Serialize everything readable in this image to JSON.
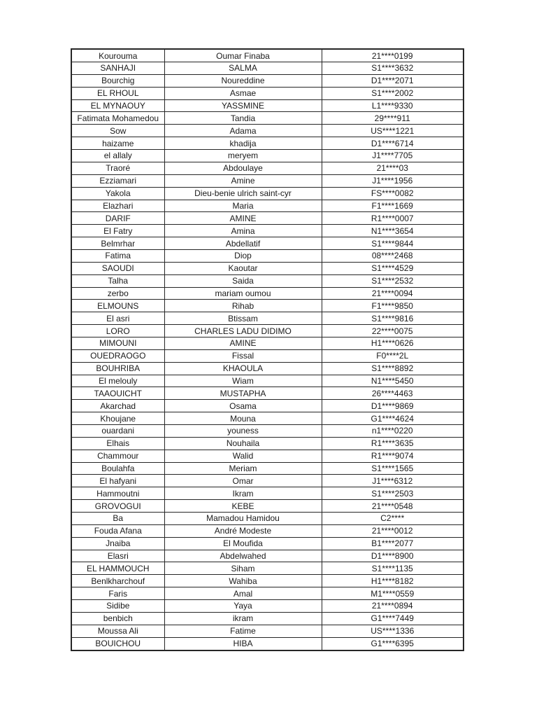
{
  "document": {
    "background_color": "#ffffff",
    "table": {
      "border_color": "#262626",
      "text_color": "#1a1a1a",
      "rows": [
        [
          "Kourouma",
          "Oumar Finaba",
          "21****0199"
        ],
        [
          "SANHAJI",
          "SALMA",
          "S1****3632"
        ],
        [
          "Bourchig",
          "Noureddine",
          "D1****2071"
        ],
        [
          "EL RHOUL",
          "Asmae",
          "S1****2002"
        ],
        [
          "EL MYNAOUY",
          "YASSMINE",
          "L1****9330"
        ],
        [
          "Fatimata Mohamedou",
          "Tandia",
          "29****911"
        ],
        [
          "Sow",
          "Adama",
          "US****1221"
        ],
        [
          "haizame",
          "khadija",
          "D1****6714"
        ],
        [
          "el allaly",
          "meryem",
          "J1****7705"
        ],
        [
          "Traoré",
          "Abdoulaye",
          "21****03"
        ],
        [
          "Ezziamari",
          "Amine",
          "J1****1956"
        ],
        [
          "Yakola",
          "Dieu-benie ulrich saint-cyr",
          "FS****0082"
        ],
        [
          "Elazhari",
          "Maria",
          "F1****1669"
        ],
        [
          "DARIF",
          "AMINE",
          "R1****0007"
        ],
        [
          "El Fatry",
          "Amina",
          "N1****3654"
        ],
        [
          "Belmrhar",
          "Abdellatif",
          "S1****9844"
        ],
        [
          "Fatima",
          "Diop",
          "08****2468"
        ],
        [
          "SAOUDI",
          "Kaoutar",
          "S1****4529"
        ],
        [
          "Talha",
          "Saida",
          "S1****2532"
        ],
        [
          "zerbo",
          "mariam oumou",
          "21****0094"
        ],
        [
          "ELMOUNS",
          "Rihab",
          "F1****9850"
        ],
        [
          "El asri",
          "Btissam",
          "S1****9816"
        ],
        [
          "LORO",
          "CHARLES LADU DIDIMO",
          "22****0075"
        ],
        [
          "MIMOUNI",
          "AMINE",
          "H1****0626"
        ],
        [
          "OUEDRAOGO",
          "Fissal",
          "F0****2L"
        ],
        [
          "BOUHRIBA",
          "KHAOULA",
          "S1****8892"
        ],
        [
          "El melouly",
          "Wiam",
          "N1****5450"
        ],
        [
          "TAAOUICHT",
          "MUSTAPHA",
          "26****4463"
        ],
        [
          "Akarchad",
          "Osama",
          "D1****9869"
        ],
        [
          "Khoujane",
          "Mouna",
          "G1****4624"
        ],
        [
          "ouardani",
          "youness",
          "n1****0220"
        ],
        [
          "Elhais",
          "Nouhaila",
          "R1****3635"
        ],
        [
          "Chammour",
          "Walid",
          "R1****9074"
        ],
        [
          "Boulahfa",
          "Meriam",
          "S1****1565"
        ],
        [
          "El hafyani",
          "Omar",
          "J1****6312"
        ],
        [
          "Hammoutni",
          "Ikram",
          "S1****2503"
        ],
        [
          "GROVOGUI",
          "KEBE",
          "21****0548"
        ],
        [
          "Ba",
          "Mamadou Hamidou",
          "C2****"
        ],
        [
          "Fouda Afana",
          "André Modeste",
          "21****0012"
        ],
        [
          "Jnaiba",
          "El Moufida",
          "B1****2077"
        ],
        [
          "Elasri",
          "Abdelwahed",
          "D1****8900"
        ],
        [
          "EL HAMMOUCH",
          "Siham",
          "S1****1135"
        ],
        [
          "Benlkharchouf",
          "Wahiba",
          "H1****8182"
        ],
        [
          "Faris",
          "Amal",
          "M1****0559"
        ],
        [
          "Sidibe",
          "Yaya",
          "21****0894"
        ],
        [
          "benbich",
          "ikram",
          "G1****7449"
        ],
        [
          "Moussa Ali",
          "Fatime",
          "US****1336"
        ],
        [
          "BOUICHOU",
          "HIBA",
          "G1****6395"
        ]
      ]
    }
  }
}
